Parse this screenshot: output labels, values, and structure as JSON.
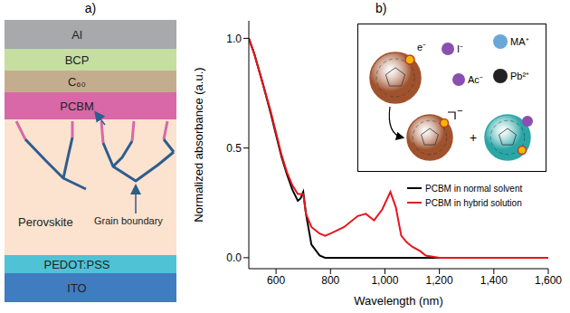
{
  "panel_a": {
    "letter": "a)",
    "layers": [
      {
        "label": "Al",
        "color": "#a7a9ab"
      },
      {
        "label": "BCP",
        "color": "#c6dea0"
      },
      {
        "label": "C₆₀",
        "color": "#c4ad8f"
      },
      {
        "label": "PCBM",
        "color": "#d868a8"
      },
      {
        "label": "Perovskite",
        "color": "#fbe3cf"
      },
      {
        "label": "PEDOT:PSS",
        "color": "#4fc2d6"
      },
      {
        "label": "ITO",
        "color": "#3f7cc0"
      }
    ],
    "grain_boundary": {
      "label": "Grain boundary",
      "color": "#2e5d8f",
      "tip_color": "#d868a8"
    }
  },
  "panel_b": {
    "letter": "b)"
  },
  "chart_data": {
    "type": "line",
    "x_label": "Wavelength (nm)",
    "y_label": "Normalized absorbance (a.u.)",
    "x": [
      500,
      520,
      550,
      580,
      600,
      620,
      640,
      660,
      680,
      690,
      700,
      710,
      730,
      760,
      780,
      800,
      850,
      900,
      930,
      960,
      990,
      1020,
      1040,
      1060,
      1080,
      1100,
      1130,
      1150,
      1200,
      1300,
      1400,
      1500,
      1600
    ],
    "series": [
      {
        "name": "PCBM in normal solvent",
        "color": "#000000",
        "values": [
          1.0,
          0.93,
          0.8,
          0.66,
          0.56,
          0.46,
          0.38,
          0.31,
          0.26,
          0.27,
          0.3,
          0.2,
          0.06,
          0.01,
          0.0,
          0.0,
          0.0,
          0.0,
          0.0,
          0.0,
          0.0,
          0.0,
          0.0,
          0.0,
          0.0,
          0.0,
          0.0,
          0.0,
          0.0,
          0.0,
          0.0,
          0.0,
          0.0
        ]
      },
      {
        "name": "PCBM in hybrid solution",
        "color": "#e8141c",
        "values": [
          1.0,
          0.93,
          0.8,
          0.67,
          0.57,
          0.47,
          0.39,
          0.33,
          0.29,
          0.29,
          0.29,
          0.2,
          0.14,
          0.11,
          0.1,
          0.11,
          0.14,
          0.19,
          0.2,
          0.17,
          0.22,
          0.3,
          0.23,
          0.1,
          0.07,
          0.05,
          0.03,
          0.01,
          0.0,
          0.0,
          0.0,
          0.0,
          0.0
        ]
      }
    ],
    "xlim": [
      500,
      1600
    ],
    "xticks": [
      600,
      800,
      {
        "value": 1000,
        "label": "1,000"
      },
      {
        "value": 1200,
        "label": "1,200"
      },
      {
        "value": 1400,
        "label": "1,400"
      },
      {
        "value": 1600,
        "label": "1,600"
      }
    ],
    "ylim": [
      -0.05,
      1.08
    ],
    "yticks": [
      {
        "value": 0,
        "label": "0.0"
      },
      {
        "value": 0.5,
        "label": "0.5"
      },
      {
        "value": 1,
        "label": "1.0"
      }
    ],
    "legend": "lower right",
    "grid": false
  },
  "inset": {
    "ions": [
      {
        "label": "I⁻",
        "color": "#8a4fb0"
      },
      {
        "label": "MA⁺",
        "color": "#6aa8d8"
      },
      {
        "label": "Ac⁻",
        "color": "#8a4fb0"
      },
      {
        "label": "Pb²⁺",
        "color": "#222222"
      }
    ],
    "electron": "e⁻",
    "anion_charge": "−",
    "plus": "+",
    "fullerene_color": "#a0522d",
    "product_color": "#2aa6a6"
  }
}
